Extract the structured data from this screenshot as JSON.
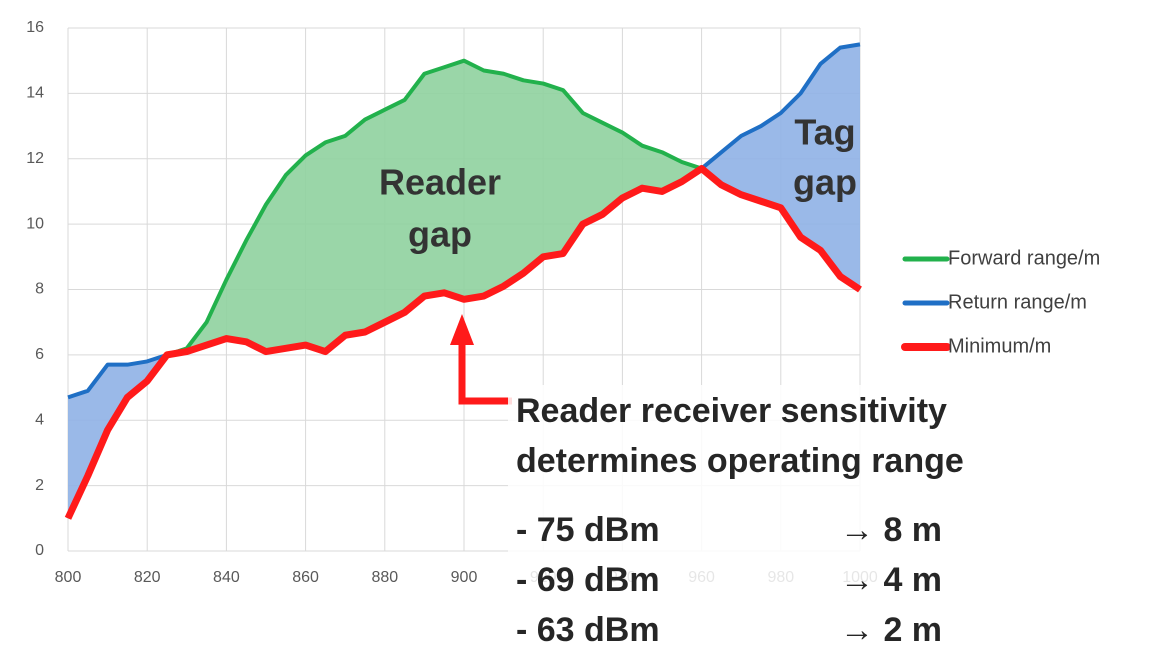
{
  "chart_data": {
    "type": "line",
    "x": [
      800,
      805,
      810,
      815,
      820,
      825,
      830,
      835,
      840,
      845,
      850,
      855,
      860,
      865,
      870,
      875,
      880,
      885,
      890,
      895,
      900,
      905,
      910,
      915,
      920,
      925,
      930,
      935,
      940,
      945,
      950,
      955,
      960,
      965,
      970,
      975,
      980,
      985,
      990,
      995,
      1000
    ],
    "series": [
      {
        "name": "Forward range/m",
        "color": "#22b14c",
        "fill": "#8fd19e",
        "values": [
          1.0,
          2.3,
          3.7,
          4.7,
          5.2,
          6.0,
          6.2,
          7.0,
          8.3,
          9.5,
          10.6,
          11.5,
          12.1,
          12.5,
          12.7,
          13.2,
          13.5,
          13.8,
          14.6,
          14.8,
          15.0,
          14.7,
          14.6,
          14.4,
          14.3,
          14.1,
          13.4,
          13.1,
          12.8,
          12.4,
          12.2,
          11.9,
          11.7,
          11.2,
          10.9,
          10.7,
          10.5,
          9.6,
          9.2,
          8.4,
          8.0
        ]
      },
      {
        "name": "Return range/m",
        "color": "#1f6fc5",
        "fill": "#8fb1e6",
        "values": [
          4.7,
          4.9,
          5.7,
          5.7,
          5.8,
          6.0,
          6.1,
          6.3,
          6.5,
          6.4,
          6.1,
          6.2,
          6.3,
          6.1,
          6.6,
          6.7,
          7.0,
          7.3,
          7.8,
          7.9,
          7.7,
          7.8,
          8.1,
          8.5,
          9.0,
          9.1,
          10.0,
          10.3,
          10.8,
          11.1,
          11.0,
          11.3,
          11.7,
          12.2,
          12.7,
          13.0,
          13.4,
          14.0,
          14.9,
          15.4,
          15.5
        ]
      },
      {
        "name": "Minimum/m",
        "color": "#ff1a1a",
        "values": [
          1.0,
          2.3,
          3.7,
          4.7,
          5.2,
          6.0,
          6.1,
          6.3,
          6.5,
          6.4,
          6.1,
          6.2,
          6.3,
          6.1,
          6.6,
          6.7,
          7.0,
          7.3,
          7.8,
          7.9,
          7.7,
          7.8,
          8.1,
          8.5,
          9.0,
          9.1,
          10.0,
          10.3,
          10.8,
          11.1,
          11.0,
          11.3,
          11.7,
          11.2,
          10.9,
          10.7,
          10.5,
          9.6,
          9.2,
          8.4,
          8.0
        ]
      }
    ],
    "xlim": [
      800,
      1000
    ],
    "xticks": [
      800,
      820,
      840,
      860,
      880,
      900,
      920,
      940,
      960,
      980,
      1000
    ],
    "ylim": [
      0,
      16
    ],
    "yticks": [
      0,
      2,
      4,
      6,
      8,
      10,
      12,
      14,
      16
    ],
    "grid": true,
    "legend": "right",
    "annotations": [
      {
        "text": "Reader"
      },
      {
        "text": "gap"
      },
      {
        "text": "Tag"
      },
      {
        "text": "gap"
      }
    ],
    "note": {
      "lines": [
        "Reader receiver sensitivity",
        "determines operating range"
      ],
      "rows": [
        [
          "- 75 dBm",
          "→ 8 m"
        ],
        [
          "- 69 dBm",
          "→ 4 m"
        ],
        [
          "- 63 dBm",
          "→ 2 m"
        ]
      ]
    }
  }
}
